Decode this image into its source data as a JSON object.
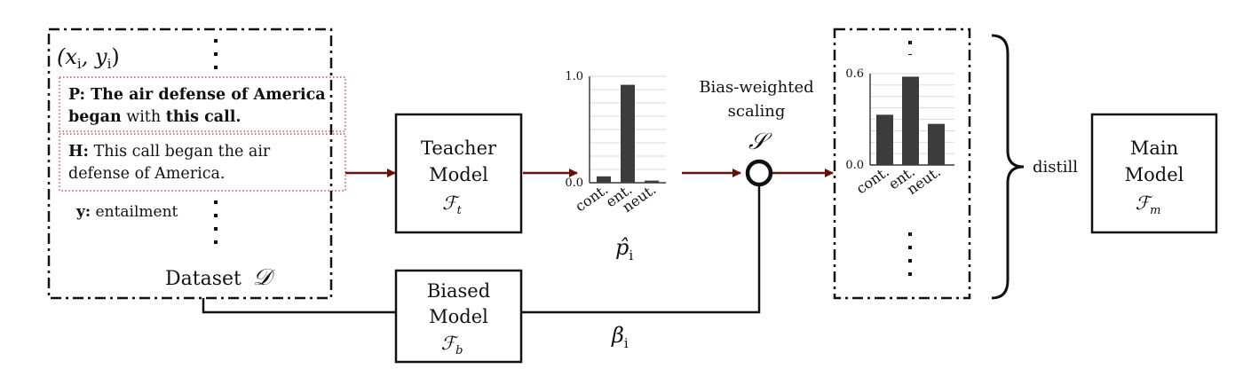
{
  "dataset": {
    "pair_label": "(x_i, y_i)",
    "premise": {
      "prefix": "P:",
      "parts": [
        {
          "text": " The air defense of America began",
          "bold": true
        },
        {
          "text": " with ",
          "bold": false
        },
        {
          "text": "this call.",
          "bold": true
        }
      ]
    },
    "hypothesis": {
      "prefix": "H:",
      "text": " This call began the air defense of America."
    },
    "label_prefix": "y:",
    "label_text": " entailment",
    "caption": "Dataset",
    "caption_symbol": "𝒟"
  },
  "teacher": {
    "line1": "Teacher",
    "line2": "Model",
    "symbol": "ℱ",
    "subscript": "t"
  },
  "biased": {
    "line1": "Biased",
    "line2": "Model",
    "symbol": "ℱ",
    "subscript": "b"
  },
  "main": {
    "line1": "Main",
    "line2": "Model",
    "symbol": "ℱ",
    "subscript": "m"
  },
  "scaling": {
    "line1": "Bias-weighted",
    "line2": "scaling",
    "symbol": "𝒮"
  },
  "beta_label": "β",
  "beta_sub": "i",
  "p_label": "p̂",
  "p_sub": "i",
  "distill_label": "distill",
  "colors": {
    "arrow": "#6a0d0d",
    "bar": "#3c3c3c"
  },
  "chart_data": [
    {
      "type": "bar",
      "categories": [
        "cont.",
        "ent.",
        "neut."
      ],
      "values": [
        0.06,
        0.92,
        0.02
      ],
      "ylim": [
        0,
        1.0
      ],
      "yticks": [
        "0.0",
        "1.0"
      ],
      "grid": true
    },
    {
      "type": "bar",
      "categories": [
        "cont.",
        "ent.",
        "neut."
      ],
      "values": [
        0.33,
        0.58,
        0.27
      ],
      "ylim": [
        0,
        0.6
      ],
      "yticks": [
        "0.0",
        "0.6"
      ],
      "grid": true
    }
  ]
}
